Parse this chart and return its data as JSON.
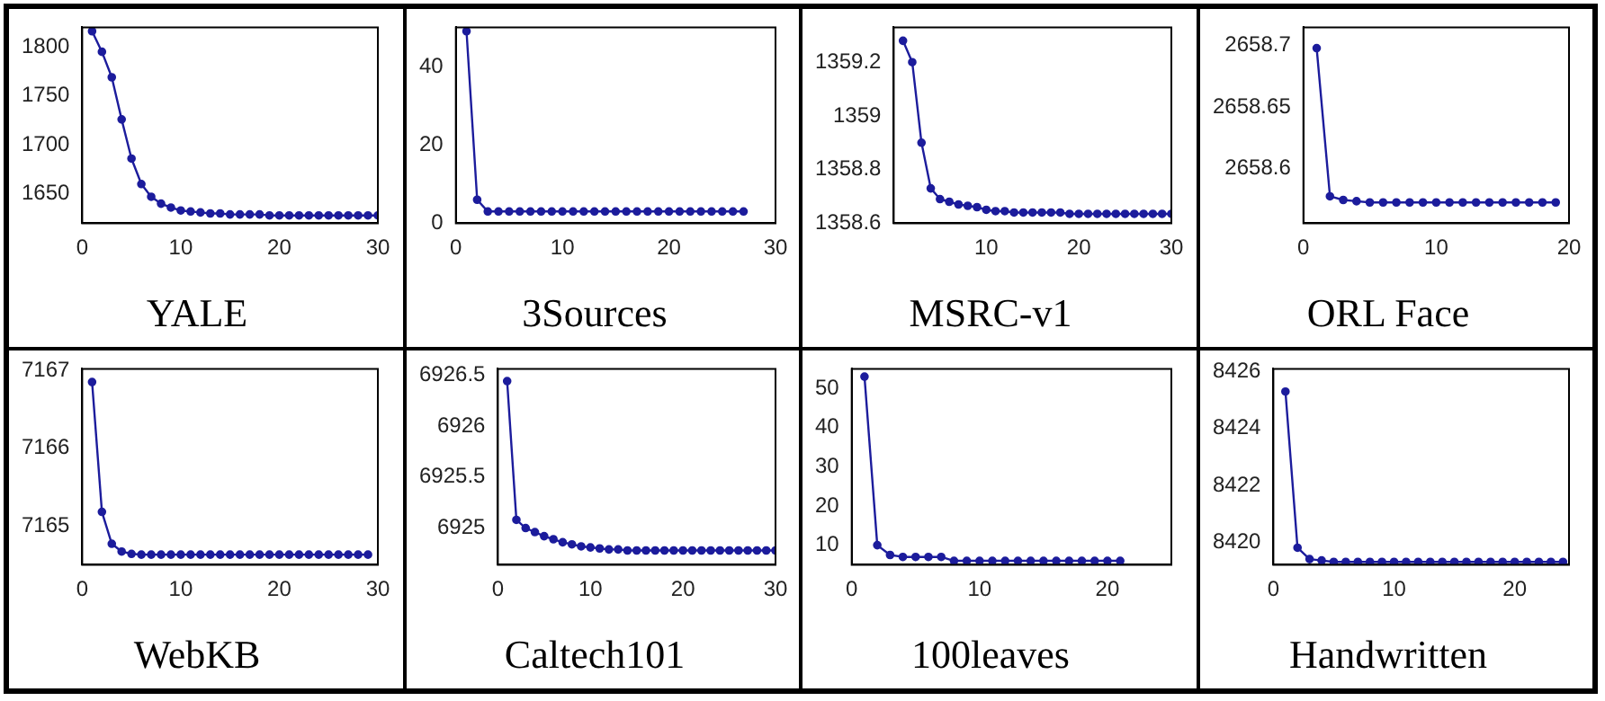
{
  "chart_data": [
    {
      "type": "line",
      "title": "YALE",
      "marker": "circle",
      "color": "#1c1c9c",
      "xlim": [
        0,
        30
      ],
      "xticks": [
        0,
        10,
        20,
        30
      ],
      "ylim": [
        1620,
        1820
      ],
      "yticks": [
        1650,
        1700,
        1750,
        1800
      ],
      "x": [
        1,
        2,
        3,
        4,
        5,
        6,
        7,
        8,
        9,
        10,
        11,
        12,
        13,
        14,
        15,
        16,
        17,
        18,
        19,
        20,
        21,
        22,
        23,
        24,
        25,
        26,
        27,
        28,
        29,
        30
      ],
      "values": [
        1816,
        1795,
        1769,
        1726,
        1686,
        1660,
        1647,
        1640,
        1636,
        1633,
        1632,
        1631,
        1630,
        1630,
        1629,
        1629,
        1629,
        1629,
        1628,
        1628,
        1628,
        1628,
        1628,
        1628,
        1628,
        1628,
        1628,
        1628,
        1628,
        1628
      ]
    },
    {
      "type": "line",
      "title": "3Sources",
      "marker": "circle",
      "color": "#1c1c9c",
      "xlim": [
        0,
        30
      ],
      "xticks": [
        0,
        10,
        20,
        30
      ],
      "ylim": [
        0,
        50
      ],
      "yticks": [
        0,
        20,
        40
      ],
      "x": [
        1,
        2,
        3,
        4,
        5,
        6,
        7,
        8,
        9,
        10,
        11,
        12,
        13,
        14,
        15,
        16,
        17,
        18,
        19,
        20,
        21,
        22,
        23,
        24,
        25,
        26,
        27
      ],
      "values": [
        49,
        6,
        3,
        3,
        3,
        3,
        3,
        3,
        3,
        3,
        3,
        3,
        3,
        3,
        3,
        3,
        3,
        3,
        3,
        3,
        3,
        3,
        3,
        3,
        3,
        3,
        3
      ]
    },
    {
      "type": "line",
      "title": "MSRC-v1",
      "marker": "circle",
      "color": "#1c1c9c",
      "xlim": [
        0,
        30
      ],
      "xticks": [
        10,
        20,
        30
      ],
      "ylim": [
        1358.6,
        1359.33
      ],
      "yticks": [
        1358.6,
        1358.8,
        1359,
        1359.2
      ],
      "x": [
        1,
        2,
        3,
        4,
        5,
        6,
        7,
        8,
        9,
        10,
        11,
        12,
        13,
        14,
        15,
        16,
        17,
        18,
        19,
        20,
        21,
        22,
        23,
        24,
        25,
        26,
        27,
        28,
        29,
        30
      ],
      "values": [
        1359.28,
        1359.2,
        1358.9,
        1358.73,
        1358.69,
        1358.68,
        1358.67,
        1358.665,
        1358.66,
        1358.65,
        1358.645,
        1358.645,
        1358.64,
        1358.64,
        1358.64,
        1358.64,
        1358.64,
        1358.64,
        1358.635,
        1358.635,
        1358.635,
        1358.635,
        1358.635,
        1358.635,
        1358.635,
        1358.635,
        1358.635,
        1358.635,
        1358.635,
        1358.635
      ]
    },
    {
      "type": "line",
      "title": "ORL Face",
      "marker": "circle",
      "color": "#1c1c9c",
      "xlim": [
        0,
        20
      ],
      "xticks": [
        0,
        10,
        20
      ],
      "ylim": [
        2658.555,
        2658.715
      ],
      "yticks": [
        2658.6,
        2658.65,
        2658.7
      ],
      "x": [
        1,
        2,
        3,
        4,
        5,
        6,
        7,
        8,
        9,
        10,
        11,
        12,
        13,
        14,
        15,
        16,
        17,
        18,
        19
      ],
      "values": [
        2658.698,
        2658.577,
        2658.574,
        2658.573,
        2658.572,
        2658.572,
        2658.572,
        2658.572,
        2658.572,
        2658.572,
        2658.572,
        2658.572,
        2658.572,
        2658.572,
        2658.572,
        2658.572,
        2658.572,
        2658.572,
        2658.572
      ]
    },
    {
      "type": "line",
      "title": "WebKB",
      "marker": "circle",
      "color": "#1c1c9c",
      "xlim": [
        0,
        30
      ],
      "xticks": [
        0,
        10,
        20,
        30
      ],
      "ylim": [
        7164.5,
        7167.02
      ],
      "yticks": [
        7165,
        7166,
        7167
      ],
      "x": [
        1,
        2,
        3,
        4,
        5,
        6,
        7,
        8,
        9,
        10,
        11,
        12,
        13,
        14,
        15,
        16,
        17,
        18,
        19,
        20,
        21,
        22,
        23,
        24,
        25,
        26,
        27,
        28,
        29
      ],
      "values": [
        7166.85,
        7165.18,
        7164.77,
        7164.67,
        7164.64,
        7164.63,
        7164.63,
        7164.63,
        7164.63,
        7164.63,
        7164.63,
        7164.63,
        7164.63,
        7164.63,
        7164.63,
        7164.63,
        7164.63,
        7164.63,
        7164.63,
        7164.63,
        7164.63,
        7164.63,
        7164.63,
        7164.63,
        7164.63,
        7164.63,
        7164.63,
        7164.63,
        7164.63
      ]
    },
    {
      "type": "line",
      "title": "Caltech101",
      "marker": "circle",
      "color": "#1c1c9c",
      "xlim": [
        0,
        30
      ],
      "xticks": [
        0,
        10,
        20,
        30
      ],
      "ylim": [
        6924.64,
        6926.56
      ],
      "yticks": [
        6925,
        6925.5,
        6926,
        6926.5
      ],
      "x": [
        1,
        2,
        3,
        4,
        5,
        6,
        7,
        8,
        9,
        10,
        11,
        12,
        13,
        14,
        15,
        16,
        17,
        18,
        19,
        20,
        21,
        22,
        23,
        24,
        25,
        26,
        27,
        28,
        29,
        30
      ],
      "values": [
        6926.44,
        6925.08,
        6925,
        6924.96,
        6924.92,
        6924.89,
        6924.86,
        6924.84,
        6924.82,
        6924.81,
        6924.8,
        6924.79,
        6924.79,
        6924.78,
        6924.78,
        6924.78,
        6924.78,
        6924.78,
        6924.78,
        6924.78,
        6924.78,
        6924.78,
        6924.78,
        6924.78,
        6924.78,
        6924.78,
        6924.78,
        6924.78,
        6924.78,
        6924.78
      ]
    },
    {
      "type": "line",
      "title": "100leaves",
      "marker": "circle",
      "color": "#1c1c9c",
      "xlim": [
        0,
        25
      ],
      "xticks": [
        0,
        10,
        20
      ],
      "ylim": [
        5,
        55
      ],
      "yticks": [
        10,
        20,
        30,
        40,
        50
      ],
      "x": [
        1,
        2,
        3,
        4,
        5,
        6,
        7,
        8,
        9,
        10,
        11,
        12,
        13,
        14,
        15,
        16,
        17,
        18,
        19,
        20,
        21
      ],
      "values": [
        53,
        10,
        7.5,
        7,
        7,
        7,
        7,
        6,
        6,
        6,
        6,
        6,
        6,
        6,
        6,
        6,
        6,
        6,
        6,
        6,
        6
      ]
    },
    {
      "type": "line",
      "title": "Handwritten",
      "marker": "circle",
      "color": "#1c1c9c",
      "xlim": [
        0,
        24.5
      ],
      "xticks": [
        0,
        10,
        20
      ],
      "ylim": [
        8419.2,
        8426.1
      ],
      "yticks": [
        8420,
        8422,
        8424,
        8426
      ],
      "x": [
        1,
        2,
        3,
        4,
        5,
        6,
        7,
        8,
        9,
        10,
        11,
        12,
        13,
        14,
        15,
        16,
        17,
        18,
        19,
        20,
        21,
        22,
        23,
        24
      ],
      "values": [
        8425.3,
        8419.8,
        8419.4,
        8419.35,
        8419.3,
        8419.3,
        8419.3,
        8419.3,
        8419.3,
        8419.3,
        8419.3,
        8419.3,
        8419.3,
        8419.3,
        8419.3,
        8419.3,
        8419.3,
        8419.3,
        8419.3,
        8419.3,
        8419.3,
        8419.3,
        8419.3,
        8419.3
      ]
    }
  ]
}
